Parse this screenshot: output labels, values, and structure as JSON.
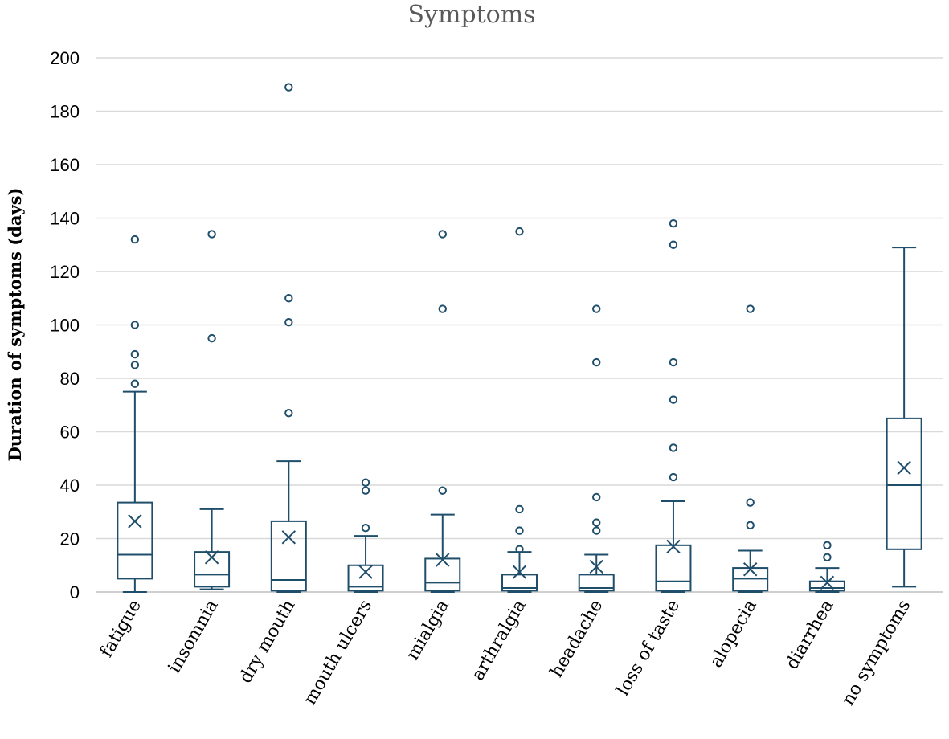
{
  "chart_data": {
    "type": "box",
    "title": "Symptoms",
    "xlabel": "",
    "ylabel": "Duration of symptoms (days)",
    "ylim": [
      0,
      200
    ],
    "yticks": [
      0,
      20,
      40,
      60,
      80,
      100,
      120,
      140,
      160,
      180,
      200
    ],
    "ytick_labels": [
      "0",
      "20",
      "40",
      "60",
      "80",
      "100",
      "120",
      "140",
      "160",
      "180",
      "200"
    ],
    "grid": true,
    "color": "#1f4e6b",
    "categories": [
      "fatigue",
      "insomnia",
      "dry mouth",
      "mouth ulcers",
      "mialgia",
      "arthralgia",
      "headache",
      "loss of taste",
      "alopecia",
      "diarrhea",
      "no symptoms"
    ],
    "boxes": [
      {
        "category": "fatigue",
        "min": 0,
        "q1": 5,
        "median": 14,
        "q3": 33.5,
        "max": 75,
        "mean": 26.5,
        "outliers": [
          78,
          85,
          89,
          100,
          132
        ]
      },
      {
        "category": "insomnia",
        "min": 1,
        "q1": 2,
        "median": 6.5,
        "q3": 15,
        "max": 31,
        "mean": 13,
        "outliers": [
          95,
          134
        ]
      },
      {
        "category": "dry mouth",
        "min": 0,
        "q1": 0.5,
        "median": 4.5,
        "q3": 26.5,
        "max": 49,
        "mean": 20.5,
        "outliers": [
          67,
          101,
          110,
          189
        ]
      },
      {
        "category": "mouth ulcers",
        "min": 0,
        "q1": 0.5,
        "median": 2,
        "q3": 10,
        "max": 21,
        "mean": 7.5,
        "outliers": [
          24,
          38,
          41
        ]
      },
      {
        "category": "mialgia",
        "min": 0,
        "q1": 0.5,
        "median": 3.5,
        "q3": 12.5,
        "max": 29,
        "mean": 12,
        "outliers": [
          38,
          106,
          134
        ]
      },
      {
        "category": "arthralgia",
        "min": 0,
        "q1": 0.5,
        "median": 1.5,
        "q3": 6.5,
        "max": 15,
        "mean": 7.5,
        "outliers": [
          16,
          23,
          31,
          135
        ]
      },
      {
        "category": "headache",
        "min": 0,
        "q1": 0.5,
        "median": 1.5,
        "q3": 6.5,
        "max": 14,
        "mean": 9.5,
        "outliers": [
          23,
          26,
          35.5,
          86,
          106
        ]
      },
      {
        "category": "loss of taste",
        "min": 0,
        "q1": 0.5,
        "median": 4,
        "q3": 17.5,
        "max": 34,
        "mean": 17,
        "outliers": [
          43,
          54,
          72,
          86,
          130,
          138
        ]
      },
      {
        "category": "alopecia",
        "min": 0,
        "q1": 0.5,
        "median": 5,
        "q3": 9,
        "max": 15.5,
        "mean": 8.5,
        "outliers": [
          25,
          33.5,
          106
        ]
      },
      {
        "category": "diarrhea",
        "min": 0,
        "q1": 0.5,
        "median": 1.5,
        "q3": 4,
        "max": 9,
        "mean": 3.5,
        "outliers": [
          13,
          17.5
        ]
      },
      {
        "category": "no symptoms",
        "min": 2,
        "q1": 16,
        "median": 40,
        "q3": 65,
        "max": 129,
        "mean": 46.5,
        "outliers": []
      }
    ]
  }
}
